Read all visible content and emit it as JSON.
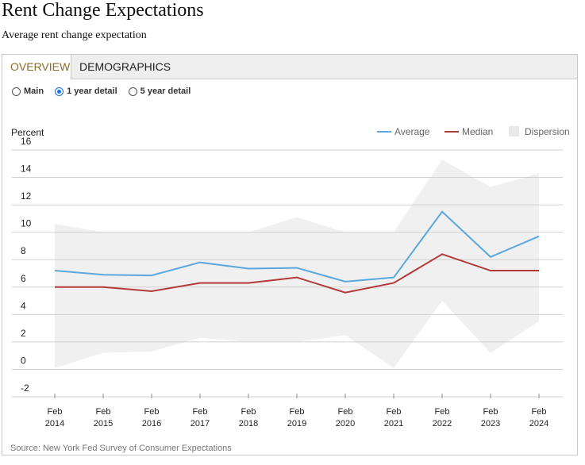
{
  "header": {
    "title": "Rent Change Expectations",
    "subtitle": "Average rent change expectation"
  },
  "tabs": [
    {
      "label": "OVERVIEW",
      "active": true
    },
    {
      "label": "DEMOGRAPHICS",
      "active": false
    }
  ],
  "view_options": {
    "options": [
      "Main",
      "1 year detail",
      "5 year detail"
    ],
    "selected": "1 year detail"
  },
  "colors": {
    "average": "#5aa8dd",
    "median": "#b33a3a",
    "dispersion": "#f0f0f0",
    "radio_selected": "#1a73e8",
    "tab_active_text": "#8a6b2a"
  },
  "chart_data": {
    "type": "line",
    "ylabel": "Percent",
    "ylim": [
      -2,
      16
    ],
    "yticks": [
      -2,
      0,
      2,
      4,
      6,
      8,
      10,
      12,
      14,
      16
    ],
    "x_labels": [
      [
        "Feb",
        "2014"
      ],
      [
        "Feb",
        "2015"
      ],
      [
        "Feb",
        "2016"
      ],
      [
        "Feb",
        "2017"
      ],
      [
        "Feb",
        "2018"
      ],
      [
        "Feb",
        "2019"
      ],
      [
        "Feb",
        "2020"
      ],
      [
        "Feb",
        "2021"
      ],
      [
        "Feb",
        "2022"
      ],
      [
        "Feb",
        "2023"
      ],
      [
        "Feb",
        "2024"
      ]
    ],
    "legend_placement": "top-right",
    "series": [
      {
        "name": "Average",
        "type": "line",
        "values": [
          7.2,
          6.9,
          6.85,
          7.8,
          7.35,
          7.4,
          6.4,
          6.7,
          11.5,
          8.2,
          9.7
        ]
      },
      {
        "name": "Median",
        "type": "line",
        "values": [
          6.0,
          6.0,
          5.7,
          6.3,
          6.3,
          6.7,
          5.6,
          6.3,
          8.4,
          7.2,
          7.2
        ]
      },
      {
        "name": "Dispersion",
        "type": "band",
        "upper": [
          10.6,
          10.0,
          10.0,
          10.0,
          10.0,
          11.1,
          10.0,
          10.0,
          15.3,
          13.3,
          14.3
        ],
        "lower": [
          0.1,
          1.2,
          1.3,
          2.3,
          2.0,
          2.0,
          2.5,
          0.1,
          5.0,
          1.2,
          3.5
        ]
      }
    ]
  },
  "source": "Source: New York Fed Survey of Consumer Expectations"
}
